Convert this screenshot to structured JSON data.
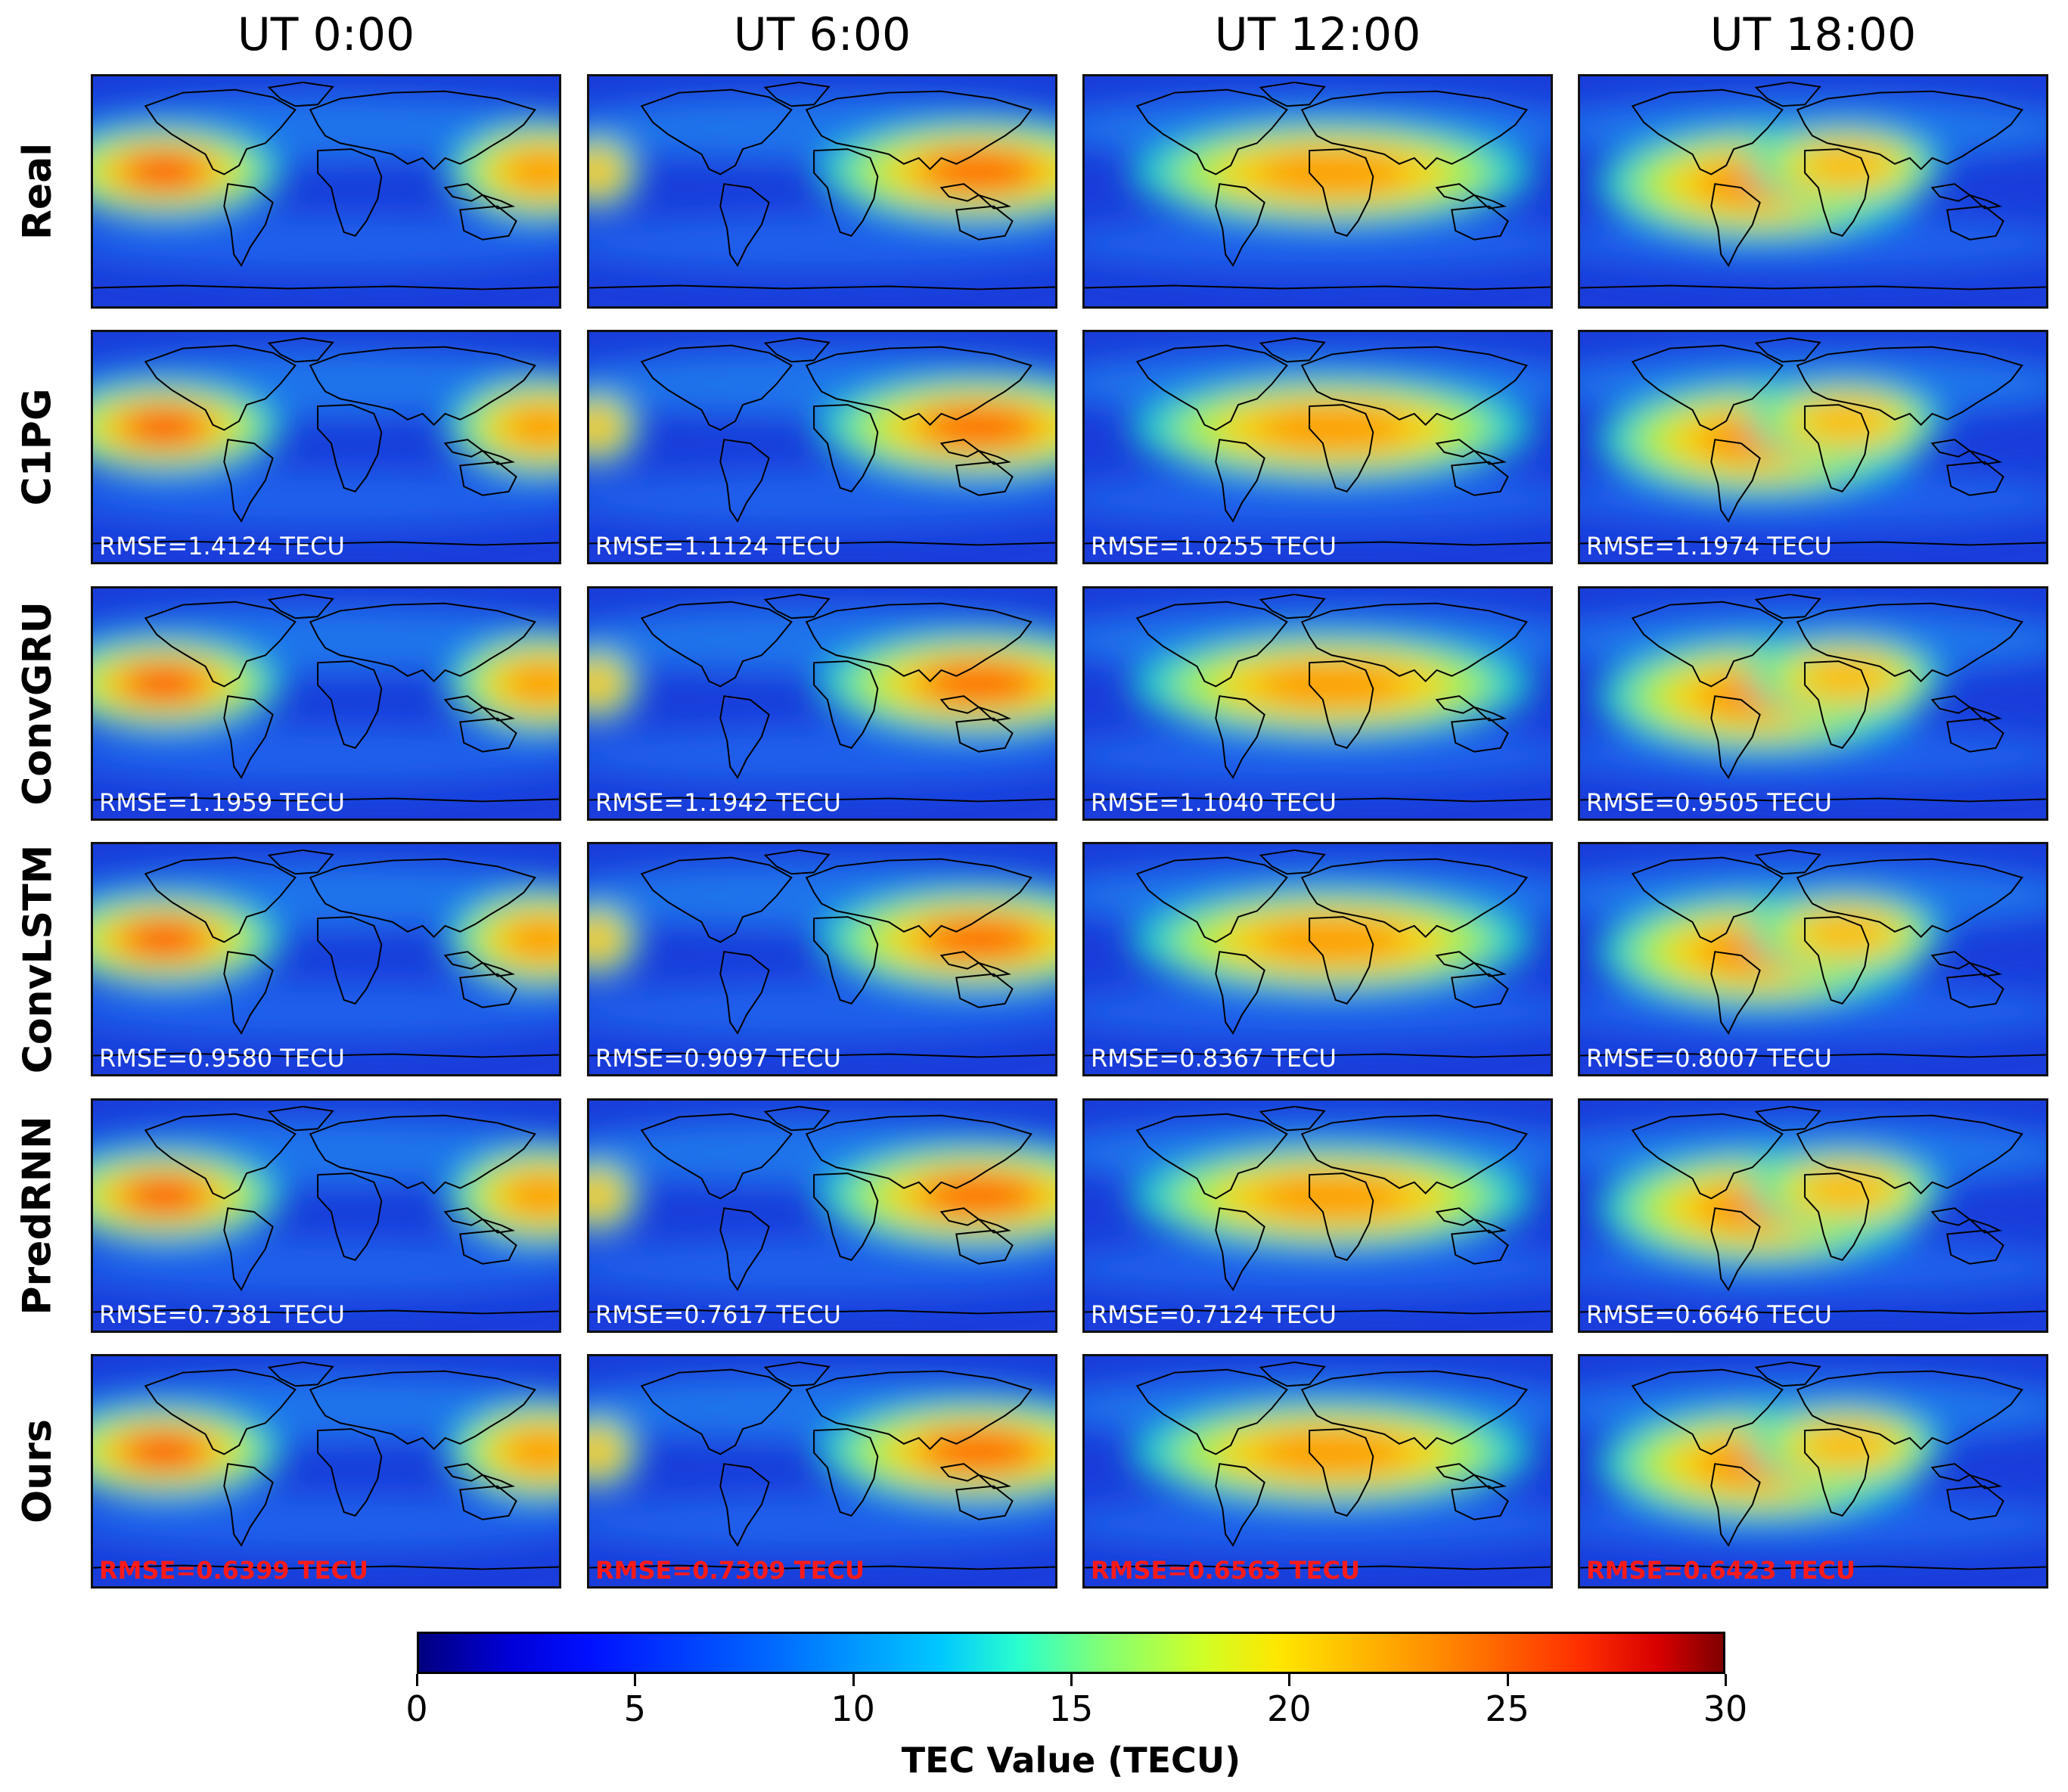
{
  "figure": {
    "columns": [
      "UT 0:00",
      "UT 6:00",
      "UT 12:00",
      "UT 18:00"
    ],
    "rows": [
      {
        "label": "Real",
        "rmse": [
          "",
          "",
          "",
          ""
        ]
      },
      {
        "label": "C1PG",
        "rmse": [
          "RMSE=1.4124 TECU",
          "RMSE=1.1124 TECU",
          "RMSE=1.0255 TECU",
          "RMSE=1.1974 TECU"
        ]
      },
      {
        "label": "ConvGRU",
        "rmse": [
          "RMSE=1.1959 TECU",
          "RMSE=1.1942 TECU",
          "RMSE=1.1040 TECU",
          "RMSE=0.9505 TECU"
        ]
      },
      {
        "label": "ConvLSTM",
        "rmse": [
          "RMSE=0.9580 TECU",
          "RMSE=0.9097 TECU",
          "RMSE=0.8367 TECU",
          "RMSE=0.8007 TECU"
        ]
      },
      {
        "label": "PredRNN",
        "rmse": [
          "RMSE=0.7381 TECU",
          "RMSE=0.7617 TECU",
          "RMSE=0.7124 TECU",
          "RMSE=0.6646 TECU"
        ]
      },
      {
        "label": "Ours",
        "rmse": [
          "RMSE=0.6399 TECU",
          "RMSE=0.7309 TECU",
          "RMSE=0.6563 TECU",
          "RMSE=0.6423 TECU"
        ],
        "highlight": true
      }
    ],
    "colors": {
      "background_field": "#1a3ddb",
      "best_rmse": "#ff1a1a",
      "rmse_text": "#ffffff"
    }
  },
  "colorbar": {
    "label": "TEC Value (TECU)",
    "min": 0,
    "max": 30,
    "ticks": [
      "0",
      "5",
      "10",
      "15",
      "20",
      "25",
      "30"
    ],
    "colormap": "jet"
  }
}
